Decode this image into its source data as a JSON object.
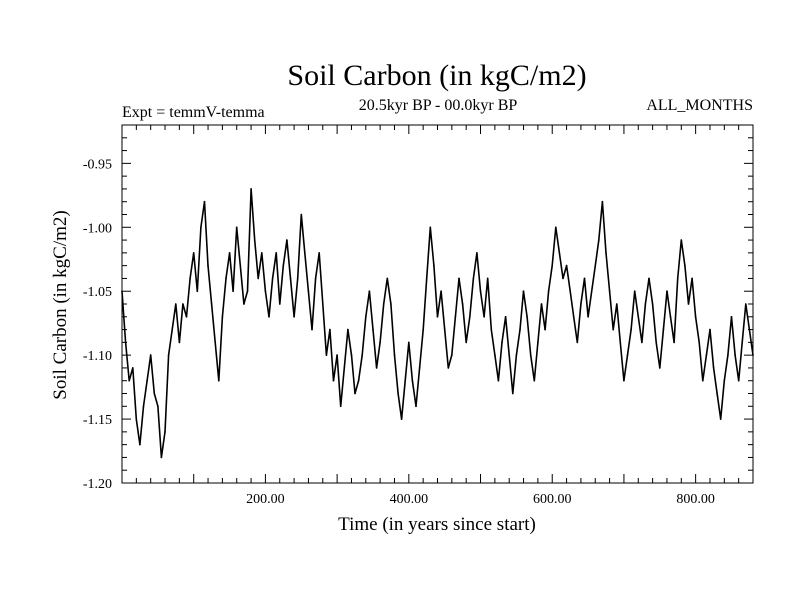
{
  "chart_data": {
    "type": "line",
    "title": "Soil Carbon (in kgC/m2)",
    "expt_label": "Expt = temmV-temma",
    "period_label": "20.5kyr BP - 00.0kyr BP",
    "months_label": "ALL_MONTHS",
    "xlabel": "Time (in years since start)",
    "ylabel": "Soil Carbon (in kgC/m2)",
    "xlim": [
      0,
      880
    ],
    "ylim": [
      -1.2,
      -0.92
    ],
    "x_ticks": [
      200,
      400,
      600,
      800
    ],
    "x_tick_labels": [
      "200.00",
      "400.00",
      "600.00",
      "800.00"
    ],
    "y_ticks": [
      -0.95,
      -1.0,
      -1.05,
      -1.1,
      -1.15,
      -1.2
    ],
    "y_tick_labels": [
      "-0.95",
      "-1.00",
      "-1.05",
      "-1.10",
      "-1.15",
      "-1.20"
    ],
    "series": [
      {
        "name": "Soil Carbon",
        "color": "#000000",
        "x": [
          0,
          5,
          10,
          15,
          20,
          25,
          30,
          35,
          40,
          45,
          50,
          55,
          60,
          65,
          70,
          75,
          80,
          85,
          90,
          95,
          100,
          105,
          110,
          115,
          120,
          125,
          130,
          135,
          140,
          145,
          150,
          155,
          160,
          165,
          170,
          175,
          180,
          185,
          190,
          195,
          200,
          205,
          210,
          215,
          220,
          225,
          230,
          235,
          240,
          245,
          250,
          255,
          260,
          265,
          270,
          275,
          280,
          285,
          290,
          295,
          300,
          305,
          310,
          315,
          320,
          325,
          330,
          335,
          340,
          345,
          350,
          355,
          360,
          365,
          370,
          375,
          380,
          385,
          390,
          395,
          400,
          405,
          410,
          415,
          420,
          425,
          430,
          435,
          440,
          445,
          450,
          455,
          460,
          465,
          470,
          475,
          480,
          485,
          490,
          495,
          500,
          505,
          510,
          515,
          520,
          525,
          530,
          535,
          540,
          545,
          550,
          555,
          560,
          565,
          570,
          575,
          580,
          585,
          590,
          595,
          600,
          605,
          610,
          615,
          620,
          625,
          630,
          635,
          640,
          645,
          650,
          655,
          660,
          665,
          670,
          675,
          680,
          685,
          690,
          695,
          700,
          705,
          710,
          715,
          720,
          725,
          730,
          735,
          740,
          745,
          750,
          755,
          760,
          765,
          770,
          775,
          780,
          785,
          790,
          795,
          800,
          805,
          810,
          815,
          820,
          825,
          830,
          835,
          840,
          845,
          850,
          855,
          860,
          865,
          870,
          875,
          880
        ],
        "values": [
          -1.05,
          -1.09,
          -1.12,
          -1.11,
          -1.15,
          -1.17,
          -1.14,
          -1.12,
          -1.1,
          -1.13,
          -1.14,
          -1.18,
          -1.16,
          -1.1,
          -1.08,
          -1.06,
          -1.09,
          -1.06,
          -1.07,
          -1.04,
          -1.02,
          -1.05,
          -1.0,
          -0.98,
          -1.03,
          -1.06,
          -1.09,
          -1.12,
          -1.07,
          -1.04,
          -1.02,
          -1.05,
          -1.0,
          -1.03,
          -1.06,
          -1.05,
          -0.97,
          -1.01,
          -1.04,
          -1.02,
          -1.05,
          -1.07,
          -1.04,
          -1.02,
          -1.06,
          -1.03,
          -1.01,
          -1.04,
          -1.07,
          -1.04,
          -0.99,
          -1.02,
          -1.05,
          -1.08,
          -1.04,
          -1.02,
          -1.06,
          -1.1,
          -1.08,
          -1.12,
          -1.1,
          -1.14,
          -1.11,
          -1.08,
          -1.1,
          -1.13,
          -1.12,
          -1.1,
          -1.07,
          -1.05,
          -1.08,
          -1.11,
          -1.09,
          -1.06,
          -1.04,
          -1.06,
          -1.1,
          -1.13,
          -1.15,
          -1.12,
          -1.09,
          -1.12,
          -1.14,
          -1.11,
          -1.08,
          -1.04,
          -1.0,
          -1.03,
          -1.07,
          -1.05,
          -1.08,
          -1.11,
          -1.1,
          -1.07,
          -1.04,
          -1.06,
          -1.09,
          -1.07,
          -1.04,
          -1.02,
          -1.05,
          -1.07,
          -1.04,
          -1.08,
          -1.1,
          -1.12,
          -1.09,
          -1.07,
          -1.1,
          -1.13,
          -1.1,
          -1.08,
          -1.05,
          -1.07,
          -1.1,
          -1.12,
          -1.09,
          -1.06,
          -1.08,
          -1.05,
          -1.03,
          -1.0,
          -1.02,
          -1.04,
          -1.03,
          -1.05,
          -1.07,
          -1.09,
          -1.06,
          -1.04,
          -1.07,
          -1.05,
          -1.03,
          -1.01,
          -0.98,
          -1.02,
          -1.05,
          -1.08,
          -1.06,
          -1.09,
          -1.12,
          -1.1,
          -1.08,
          -1.05,
          -1.07,
          -1.09,
          -1.06,
          -1.04,
          -1.06,
          -1.09,
          -1.11,
          -1.08,
          -1.05,
          -1.07,
          -1.09,
          -1.04,
          -1.01,
          -1.03,
          -1.06,
          -1.04,
          -1.07,
          -1.09,
          -1.12,
          -1.1,
          -1.08,
          -1.11,
          -1.13,
          -1.15,
          -1.12,
          -1.1,
          -1.07,
          -1.1,
          -1.12,
          -1.09,
          -1.06,
          -1.08,
          -1.1
        ]
      }
    ]
  }
}
